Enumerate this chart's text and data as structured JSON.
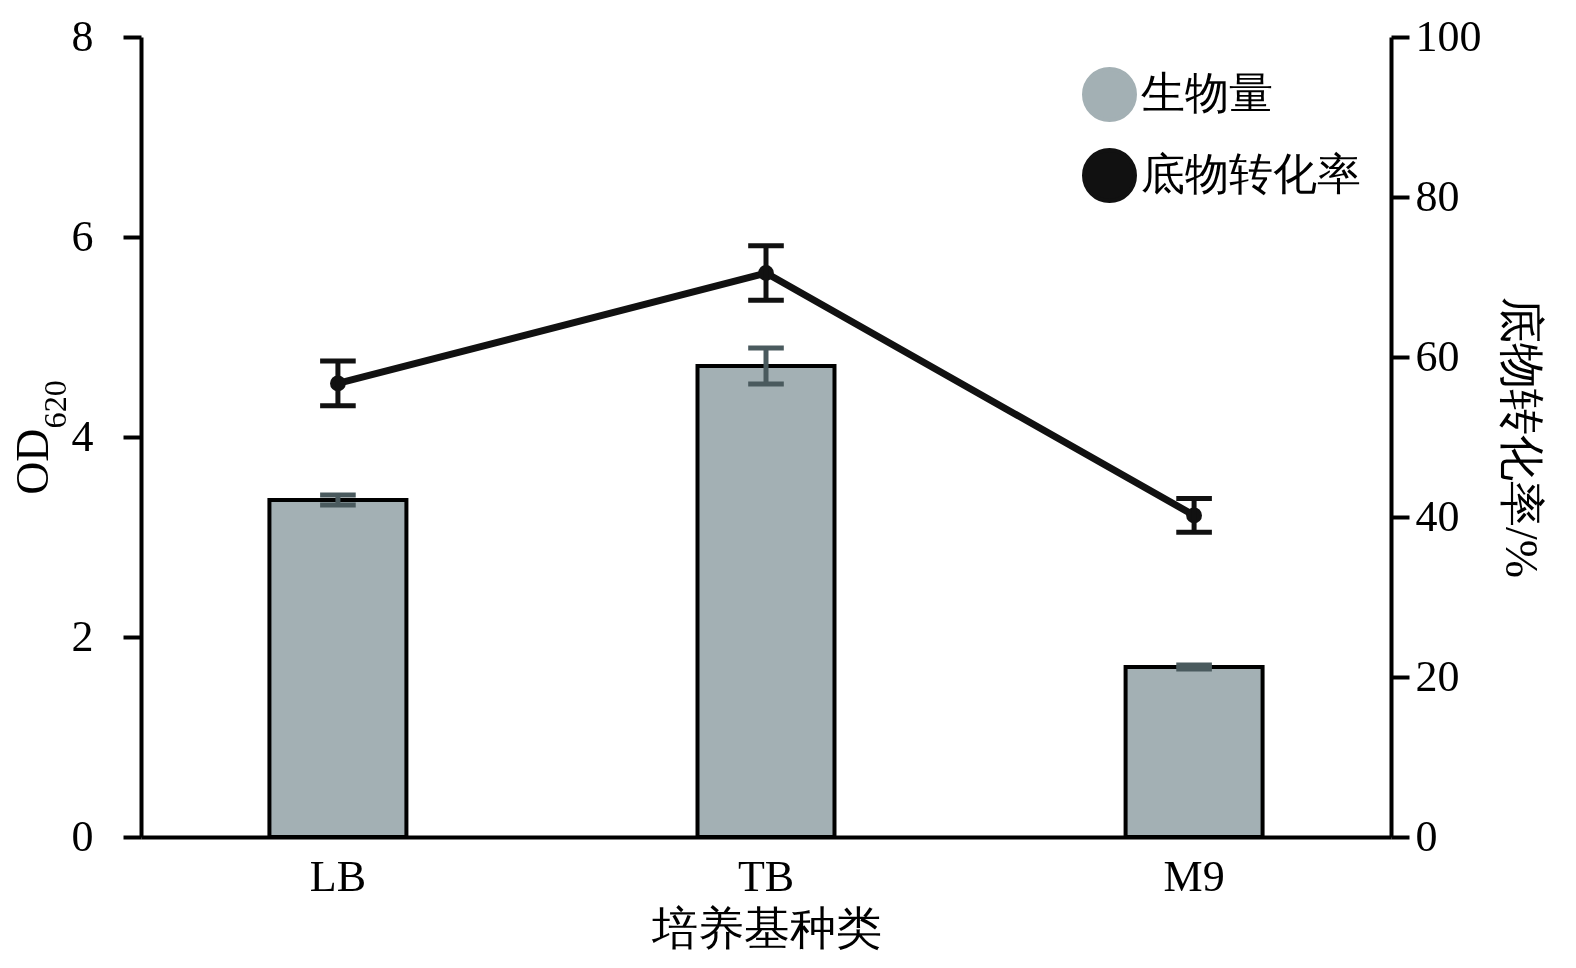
{
  "chart_data": {
    "type": "bar",
    "categories": [
      "LB",
      "TB",
      "M9"
    ],
    "xlabel": "培养基种类",
    "ylabel": "OD$_{620}$",
    "y2label": "底物转化率/%",
    "ylim": [
      0,
      8
    ],
    "yticks": [
      0,
      2,
      4,
      6,
      8
    ],
    "y2lim": [
      0,
      100
    ],
    "y2ticks": [
      0,
      20,
      40,
      60,
      80,
      100
    ],
    "grid": false,
    "legend": "top right",
    "marker": "circle",
    "line_style": "solid",
    "series": [
      {
        "name": "生物量",
        "type": "bar",
        "color": "#a3b0b4",
        "values": [
          3.37,
          4.71,
          1.7
        ],
        "errors": [
          0.05,
          0.18,
          0.02
        ]
      },
      {
        "name": "底物转化率",
        "type": "line",
        "axis": "y2",
        "color": "#111111",
        "values": [
          56.7,
          70.5,
          40.2
        ],
        "errors": [
          2.8,
          3.4,
          2.1
        ]
      }
    ]
  }
}
